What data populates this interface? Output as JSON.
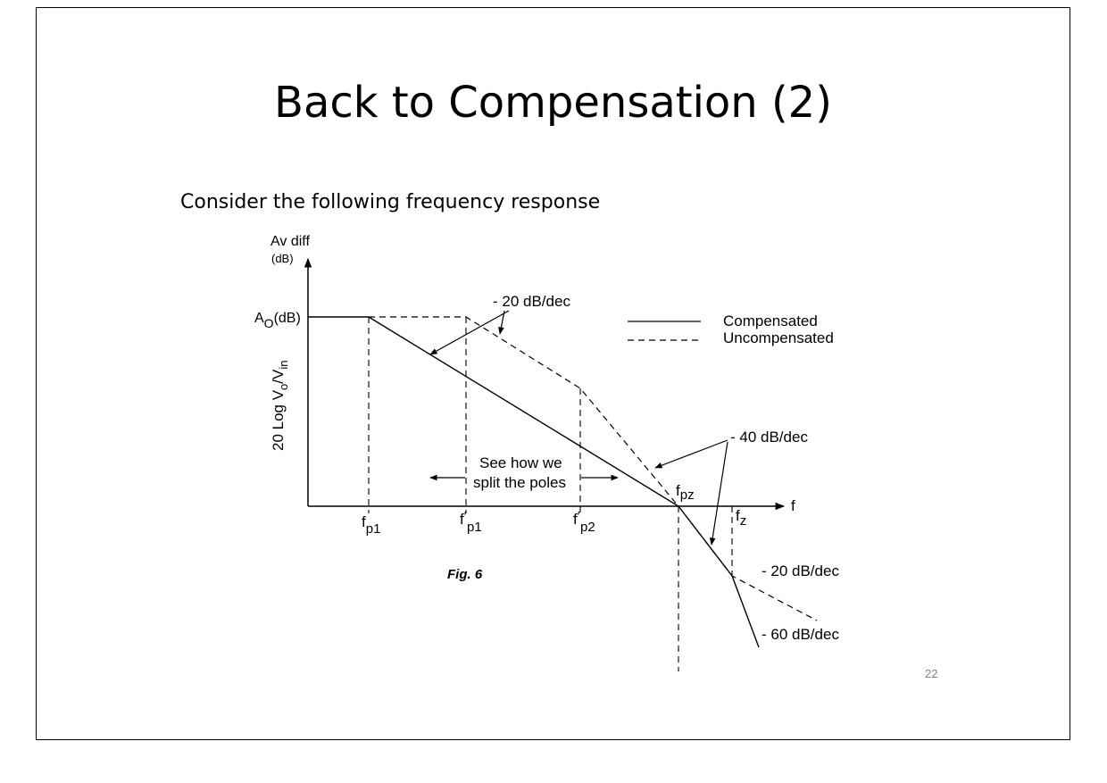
{
  "slide": {
    "title": "Back to Compensation (2)",
    "intro": "Consider the following frequency response",
    "page_number": "22"
  },
  "diagram": {
    "y_axis": {
      "label_top": "Av diff",
      "label_unit": "(dB)",
      "label_rotated": "20 Log V",
      "label_rotated_sub1": "o",
      "label_rotated_mid": "/V",
      "label_rotated_sub2": "in"
    },
    "x_axis_label": "f",
    "ao_label_main": "A",
    "ao_label_sub": "O",
    "ao_label_tail": "(dB)",
    "ticks": [
      {
        "main": "f",
        "sub": "p1",
        "prime": ""
      },
      {
        "main": "f",
        "sub": "p1",
        "prime": "′"
      },
      {
        "main": "f",
        "sub": "p2",
        "prime": "′"
      }
    ],
    "fpz_main": "f",
    "fpz_sub": "pz",
    "fz_main": "f",
    "fz_sub": "z",
    "annotations": {
      "slope_20_top": "- 20 dB/dec",
      "slope_40": "- 40 dB/dec",
      "slope_20_right": "- 20 dB/dec",
      "slope_60": "- 60 dB/dec",
      "split_line1": "See how we",
      "split_line2": "split the poles"
    },
    "legend": {
      "compensated": "Compensated",
      "uncompensated": "Uncompensated"
    },
    "figure_caption": "Fig. 6"
  }
}
